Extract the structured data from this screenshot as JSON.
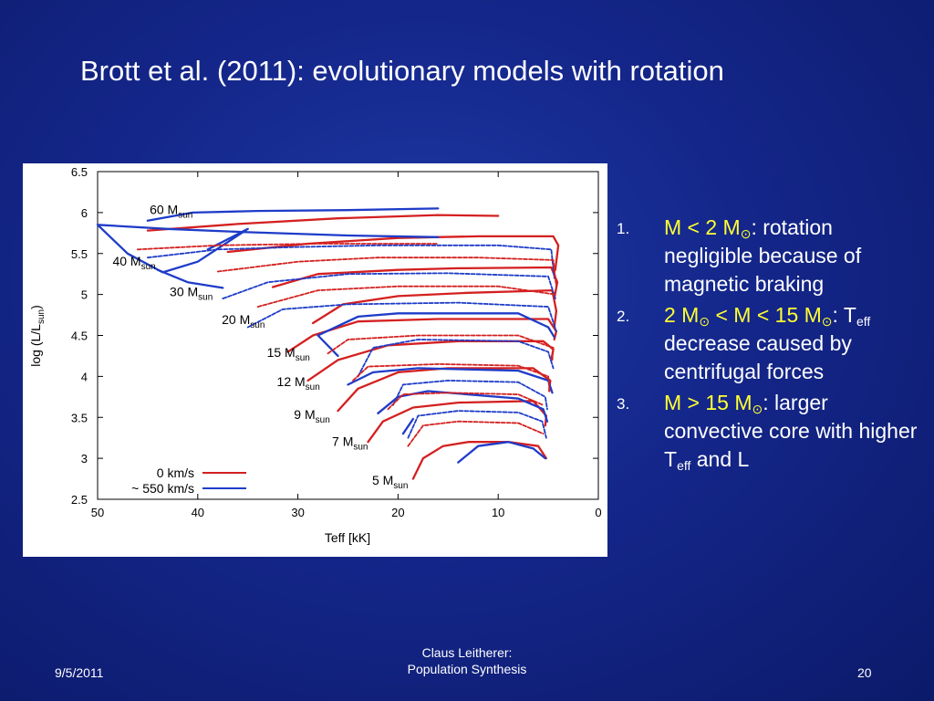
{
  "slide": {
    "title": "Brott et al. (2011): evolutionary models with rotation",
    "footer": {
      "date": "9/5/2011",
      "center_line1": "Claus Leitherer:",
      "center_line2": "Population Synthesis",
      "page": "20"
    },
    "bullets": [
      {
        "num": "1.",
        "parts": [
          {
            "t": "M < 2 M",
            "c": "hl"
          },
          {
            "t": "⊙",
            "c": "hl",
            "sub": true
          },
          {
            "t": ": rotation negligible because of magnetic braking",
            "c": ""
          }
        ]
      },
      {
        "num": "2.",
        "parts": [
          {
            "t": "2 M",
            "c": "hl"
          },
          {
            "t": "⊙",
            "c": "hl",
            "sub": true
          },
          {
            "t": " < M < 15 M",
            "c": "hl"
          },
          {
            "t": "⊙",
            "c": "hl",
            "sub": true
          },
          {
            "t": ": T",
            "c": ""
          },
          {
            "t": "eff",
            "c": "",
            "sub": true
          },
          {
            "t": " decrease caused by centrifugal forces",
            "c": ""
          }
        ]
      },
      {
        "num": "3.",
        "parts": [
          {
            "t": "M > 15 M",
            "c": "hl"
          },
          {
            "t": "⊙",
            "c": "hl",
            "sub": true
          },
          {
            "t": ": larger convective core with higher T",
            "c": ""
          },
          {
            "t": "eff",
            "c": "",
            "sub": true
          },
          {
            "t": " and L",
            "c": ""
          }
        ]
      }
    ]
  },
  "chart_data": {
    "type": "line",
    "xlabel": "Teff [kK]",
    "ylabel": "log (L/L",
    "ylabel_sub": "sun",
    "ylabel_close": ")",
    "xlim": [
      50,
      0
    ],
    "ylim": [
      2.5,
      6.5
    ],
    "xticks": [
      50,
      40,
      30,
      20,
      10,
      0
    ],
    "yticks": [
      2.5,
      3,
      3.5,
      4,
      4.5,
      5,
      5.5,
      6,
      6.5
    ],
    "legend": {
      "placement": "bottom-left",
      "entries": [
        {
          "label": "0 km/s",
          "color": "#d42020"
        },
        {
          "label": "~ 550 km/s",
          "color": "#1e3cc8"
        }
      ]
    },
    "mass_labels": [
      {
        "text": "60 M",
        "sub": "sun",
        "x": 42.5,
        "y": 5.98
      },
      {
        "text": "40 M",
        "sub": "sun",
        "x": 46.2,
        "y": 5.35
      },
      {
        "text": "30 M",
        "sub": "sun",
        "x": 40.5,
        "y": 4.98
      },
      {
        "text": "20 M",
        "sub": "sun",
        "x": 35.3,
        "y": 4.64
      },
      {
        "text": "15 M",
        "sub": "sun",
        "x": 30.8,
        "y": 4.24
      },
      {
        "text": "12 M",
        "sub": "sun",
        "x": 29.8,
        "y": 3.88
      },
      {
        "text": "9 M",
        "sub": "sun",
        "x": 28.8,
        "y": 3.48
      },
      {
        "text": "7 M",
        "sub": "sun",
        "x": 25.0,
        "y": 3.15
      },
      {
        "text": "5 M",
        "sub": "sun",
        "x": 21.0,
        "y": 2.68
      }
    ],
    "series": [
      {
        "style": "red",
        "points": [
          [
            45.0,
            5.78
          ],
          [
            36.0,
            5.86
          ],
          [
            26.0,
            5.93
          ],
          [
            16.0,
            5.97
          ],
          [
            10.0,
            5.96
          ]
        ]
      },
      {
        "style": "red",
        "points": [
          [
            37.0,
            5.52
          ],
          [
            29.0,
            5.62
          ],
          [
            20.0,
            5.69
          ],
          [
            12.0,
            5.71
          ],
          [
            4.5,
            5.71
          ],
          [
            4.0,
            5.6
          ],
          [
            4.3,
            5.3
          ]
        ]
      },
      {
        "style": "red",
        "points": [
          [
            32.5,
            5.09
          ],
          [
            28.0,
            5.25
          ],
          [
            20.0,
            5.3
          ],
          [
            14.0,
            5.32
          ],
          [
            4.7,
            5.33
          ],
          [
            4.1,
            5.15
          ],
          [
            4.4,
            4.95
          ]
        ]
      },
      {
        "style": "red",
        "points": [
          [
            28.5,
            4.65
          ],
          [
            25.5,
            4.88
          ],
          [
            20.0,
            4.98
          ],
          [
            13.0,
            5.02
          ],
          [
            4.6,
            5.05
          ],
          [
            4.2,
            4.8
          ],
          [
            4.4,
            4.6
          ]
        ]
      },
      {
        "style": "red",
        "points": [
          [
            31.0,
            4.3
          ],
          [
            28.5,
            4.5
          ],
          [
            24.0,
            4.67
          ],
          [
            16.0,
            4.7
          ],
          [
            5.0,
            4.7
          ],
          [
            4.2,
            4.55
          ],
          [
            4.4,
            4.45
          ]
        ]
      },
      {
        "style": "red",
        "points": [
          [
            29.0,
            3.95
          ],
          [
            26.0,
            4.2
          ],
          [
            21.0,
            4.38
          ],
          [
            14.0,
            4.43
          ],
          [
            5.5,
            4.43
          ],
          [
            4.5,
            4.33
          ],
          [
            4.7,
            4.2
          ]
        ]
      },
      {
        "style": "red",
        "points": [
          [
            26.0,
            3.58
          ],
          [
            24.0,
            3.85
          ],
          [
            20.0,
            4.05
          ],
          [
            15.0,
            4.1
          ],
          [
            6.5,
            4.1
          ],
          [
            4.8,
            3.95
          ],
          [
            4.9,
            3.82
          ]
        ]
      },
      {
        "style": "red",
        "points": [
          [
            23.0,
            3.2
          ],
          [
            21.5,
            3.45
          ],
          [
            18.5,
            3.62
          ],
          [
            14.0,
            3.68
          ],
          [
            6.5,
            3.7
          ],
          [
            5.2,
            3.52
          ],
          [
            5.3,
            3.4
          ]
        ]
      },
      {
        "style": "red",
        "points": [
          [
            18.5,
            2.75
          ],
          [
            17.5,
            3.0
          ],
          [
            15.5,
            3.15
          ],
          [
            13.0,
            3.2
          ],
          [
            9.0,
            3.2
          ],
          [
            6.0,
            3.15
          ],
          [
            5.2,
            3.0
          ]
        ]
      },
      {
        "style": "blue",
        "points": [
          [
            45.0,
            5.9
          ],
          [
            40.5,
            6.0
          ],
          [
            34.0,
            6.02
          ],
          [
            25.0,
            6.03
          ],
          [
            16.0,
            6.05
          ]
        ]
      },
      {
        "style": "blue",
        "points": [
          [
            39.0,
            5.55
          ],
          [
            35.0,
            5.8
          ],
          [
            40.0,
            5.4
          ],
          [
            43.5,
            5.27
          ],
          [
            47.0,
            5.5
          ],
          [
            50.0,
            5.85
          ],
          [
            43.0,
            5.8
          ],
          [
            35.0,
            5.76
          ],
          [
            25.0,
            5.72
          ],
          [
            16.0,
            5.7
          ]
        ]
      },
      {
        "style": "blue",
        "points": [
          [
            44.0,
            5.3
          ],
          [
            41.0,
            5.15
          ],
          [
            37.5,
            5.08
          ]
        ]
      },
      {
        "style": "blue",
        "points": [
          [
            26.0,
            4.25
          ],
          [
            28.0,
            4.5
          ],
          [
            24.0,
            4.73
          ],
          [
            20.0,
            4.77
          ],
          [
            8.0,
            4.77
          ],
          [
            5.0,
            4.6
          ],
          [
            4.4,
            4.48
          ]
        ]
      },
      {
        "style": "blue",
        "points": [
          [
            25.0,
            3.9
          ],
          [
            22.5,
            4.05
          ],
          [
            18.0,
            4.1
          ],
          [
            8.0,
            4.07
          ],
          [
            5.0,
            3.95
          ],
          [
            4.6,
            3.8
          ]
        ]
      },
      {
        "style": "blue",
        "points": [
          [
            22.0,
            3.55
          ],
          [
            20.0,
            3.75
          ],
          [
            17.0,
            3.82
          ],
          [
            8.0,
            3.73
          ],
          [
            5.5,
            3.6
          ],
          [
            5.1,
            3.45
          ]
        ]
      },
      {
        "style": "blue",
        "points": [
          [
            19.5,
            3.3
          ],
          [
            18.5,
            3.48
          ]
        ]
      },
      {
        "style": "blue",
        "points": [
          [
            14.0,
            2.95
          ],
          [
            12.0,
            3.15
          ],
          [
            9.0,
            3.2
          ],
          [
            6.5,
            3.12
          ],
          [
            5.3,
            3.0
          ]
        ]
      },
      {
        "style": "blue-dashed",
        "points": [
          [
            45.0,
            5.45
          ],
          [
            38.0,
            5.55
          ],
          [
            30.0,
            5.58
          ],
          [
            22.0,
            5.6
          ],
          [
            10.0,
            5.6
          ],
          [
            4.7,
            5.55
          ],
          [
            4.4,
            5.2
          ]
        ]
      },
      {
        "style": "blue-dashed",
        "points": [
          [
            37.5,
            4.95
          ],
          [
            33.0,
            5.15
          ],
          [
            25.0,
            5.25
          ],
          [
            15.0,
            5.26
          ],
          [
            5.0,
            5.22
          ],
          [
            4.3,
            4.95
          ]
        ]
      },
      {
        "style": "blue-dashed",
        "points": [
          [
            35.0,
            4.6
          ],
          [
            31.5,
            4.82
          ],
          [
            25.0,
            4.88
          ],
          [
            14.0,
            4.9
          ],
          [
            5.0,
            4.85
          ],
          [
            4.2,
            4.55
          ]
        ]
      },
      {
        "style": "blue-dashed",
        "points": [
          [
            24.0,
            4.0
          ],
          [
            22.5,
            4.35
          ],
          [
            18.0,
            4.45
          ],
          [
            8.0,
            4.43
          ],
          [
            5.0,
            4.3
          ],
          [
            4.5,
            4.1
          ]
        ]
      },
      {
        "style": "blue-dashed",
        "points": [
          [
            20.5,
            3.65
          ],
          [
            19.5,
            3.9
          ],
          [
            15.0,
            3.95
          ],
          [
            8.0,
            3.93
          ],
          [
            5.3,
            3.75
          ],
          [
            5.1,
            3.6
          ]
        ]
      },
      {
        "style": "blue-dashed",
        "points": [
          [
            19.0,
            3.25
          ],
          [
            18.0,
            3.52
          ],
          [
            14.0,
            3.58
          ],
          [
            8.0,
            3.56
          ],
          [
            5.6,
            3.45
          ],
          [
            5.2,
            3.25
          ]
        ]
      },
      {
        "style": "red-dashed",
        "points": [
          [
            46.0,
            5.55
          ],
          [
            38.0,
            5.6
          ],
          [
            28.0,
            5.62
          ],
          [
            16.0,
            5.62
          ]
        ]
      },
      {
        "style": "red-dashed",
        "points": [
          [
            38.0,
            5.28
          ],
          [
            30.0,
            5.4
          ],
          [
            22.0,
            5.45
          ],
          [
            12.0,
            5.45
          ],
          [
            4.5,
            5.42
          ],
          [
            4.2,
            5.1
          ]
        ]
      },
      {
        "style": "red-dashed",
        "points": [
          [
            34.0,
            4.85
          ],
          [
            28.0,
            5.05
          ],
          [
            20.0,
            5.1
          ],
          [
            10.0,
            5.1
          ],
          [
            4.3,
            5.0
          ]
        ]
      },
      {
        "style": "red-dashed",
        "points": [
          [
            27.0,
            4.28
          ],
          [
            25.0,
            4.45
          ],
          [
            18.0,
            4.5
          ],
          [
            8.0,
            4.5
          ],
          [
            4.5,
            4.35
          ],
          [
            4.6,
            4.2
          ]
        ]
      },
      {
        "style": "red-dashed",
        "points": [
          [
            24.5,
            3.95
          ],
          [
            23.0,
            4.12
          ],
          [
            16.0,
            4.15
          ],
          [
            8.0,
            4.13
          ],
          [
            5.0,
            4.0
          ],
          [
            4.9,
            3.85
          ]
        ]
      },
      {
        "style": "red-dashed",
        "points": [
          [
            21.0,
            3.6
          ],
          [
            19.5,
            3.78
          ],
          [
            15.0,
            3.8
          ],
          [
            8.0,
            3.78
          ],
          [
            5.5,
            3.65
          ]
        ]
      },
      {
        "style": "red-dashed",
        "points": [
          [
            19.0,
            3.15
          ],
          [
            17.5,
            3.4
          ],
          [
            14.0,
            3.45
          ],
          [
            8.0,
            3.43
          ],
          [
            5.5,
            3.3
          ]
        ]
      }
    ]
  }
}
